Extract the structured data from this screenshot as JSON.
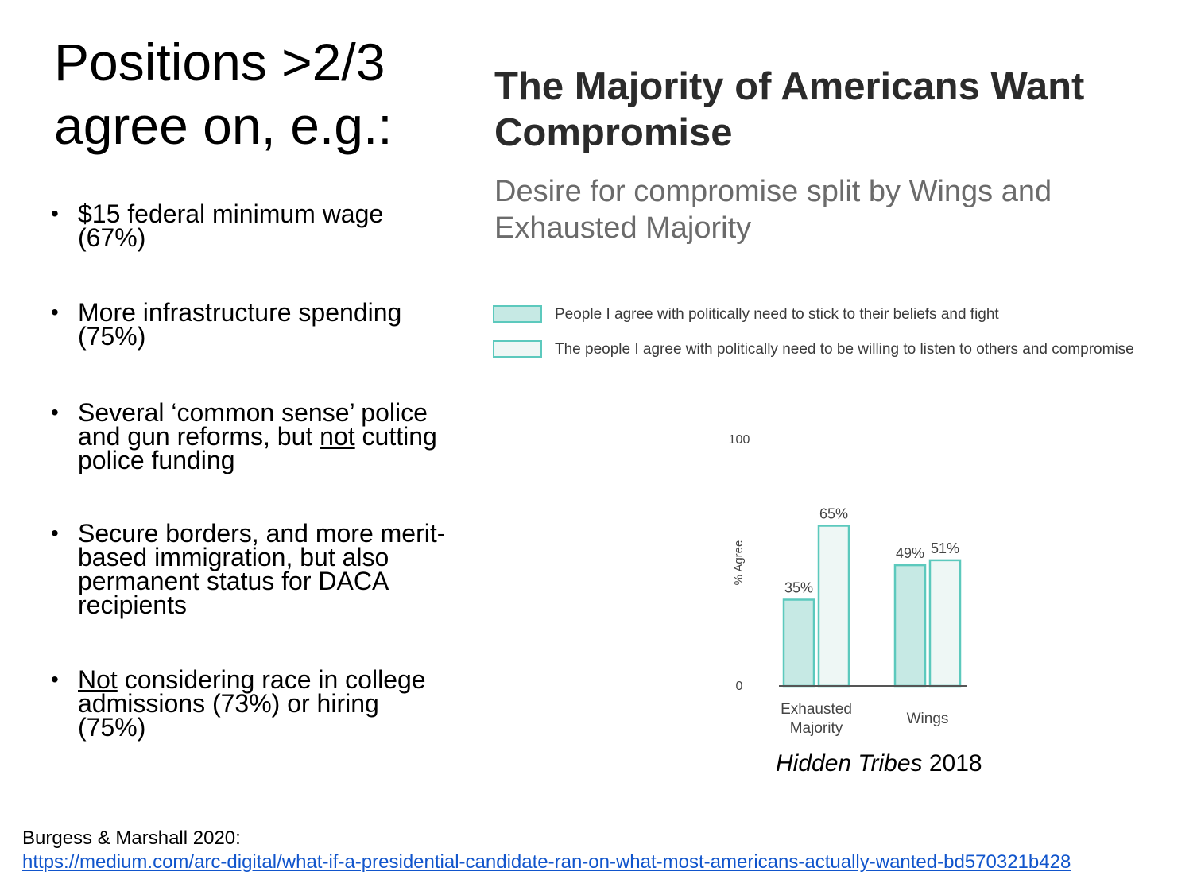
{
  "slide": {
    "title": "Positions >2/3 agree on, e.g.:",
    "bullets": [
      {
        "text": "$15 federal minimum wage (67%)"
      },
      {
        "text": "More infrastructure spending (75%)"
      },
      {
        "pre": "Several ‘common sense’ police and gun reforms, but ",
        "underline": "not",
        "post": " cutting police funding"
      },
      {
        "text": "Secure borders, and more merit-based immigration, but also permanent status for DACA recipients"
      },
      {
        "pre": "",
        "underline": "Not",
        "post": " considering race in college admissions (73%) or hiring (75%)"
      }
    ],
    "bullet_glyph": "•",
    "credit_italic": "Hidden Tribes",
    "credit_year": " 2018",
    "citation_label": "Burgess & Marshall 2020:",
    "citation_link": "https://medium.com/arc-digital/what-if-a-presidential-candidate-ran-on-what-most-americans-actually-wanted-bd570321b428"
  },
  "colors": {
    "series1_fill": "#c6e9e4",
    "series2_fill": "#eef7f5",
    "series_stroke": "#5cc9bd",
    "axis": "#555555",
    "label": "#444444"
  },
  "chart_data": {
    "type": "bar",
    "title": "The Majority of Americans Want Compromise",
    "subtitle": "Desire for compromise split by Wings and Exhausted Majority",
    "categories": [
      "Exhausted Majority",
      "Wings"
    ],
    "category_lines": [
      [
        "Exhausted",
        "Majority"
      ],
      [
        "Wings"
      ]
    ],
    "series": [
      {
        "name": "People I agree with politically need to stick to their beliefs and fight",
        "values": [
          35,
          49
        ],
        "labels": [
          "35%",
          "49%"
        ]
      },
      {
        "name": "The people I agree with politically need to be willing to listen to others and compromise",
        "values": [
          65,
          51
        ],
        "labels": [
          "65%",
          "51%"
        ]
      }
    ],
    "ylabel": "% Agree",
    "ylim": [
      0,
      100
    ],
    "yticks": [
      "0",
      "100"
    ],
    "legend_position": "top-left",
    "grid": false
  }
}
